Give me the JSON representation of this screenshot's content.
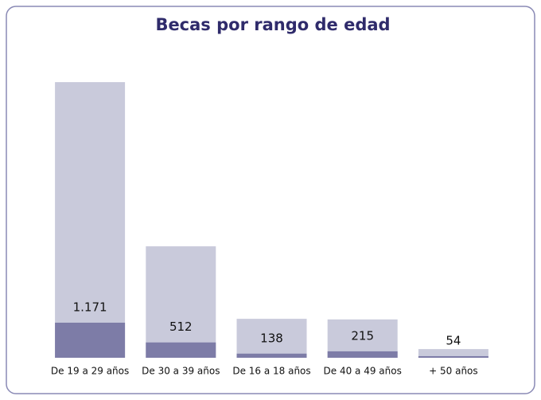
{
  "chart_data": {
    "type": "bar",
    "title": "Becas por rango de edad",
    "categories": [
      "De 19 a 29 años",
      "De 30 a 39 años",
      "De 16 a 18 años",
      "De 40 a 49 años",
      "+ 50 años"
    ],
    "series": [
      {
        "color": "#c9cadb",
        "values": [
          9200,
          3720,
          1300,
          1280,
          290
        ]
      },
      {
        "color": "#7d7ca7",
        "values": [
          1171,
          512,
          138,
          215,
          54
        ],
        "value_labels": [
          "1.171",
          "512",
          "138",
          "215",
          "54"
        ]
      }
    ],
    "ylim": [
      0,
      10000
    ]
  }
}
